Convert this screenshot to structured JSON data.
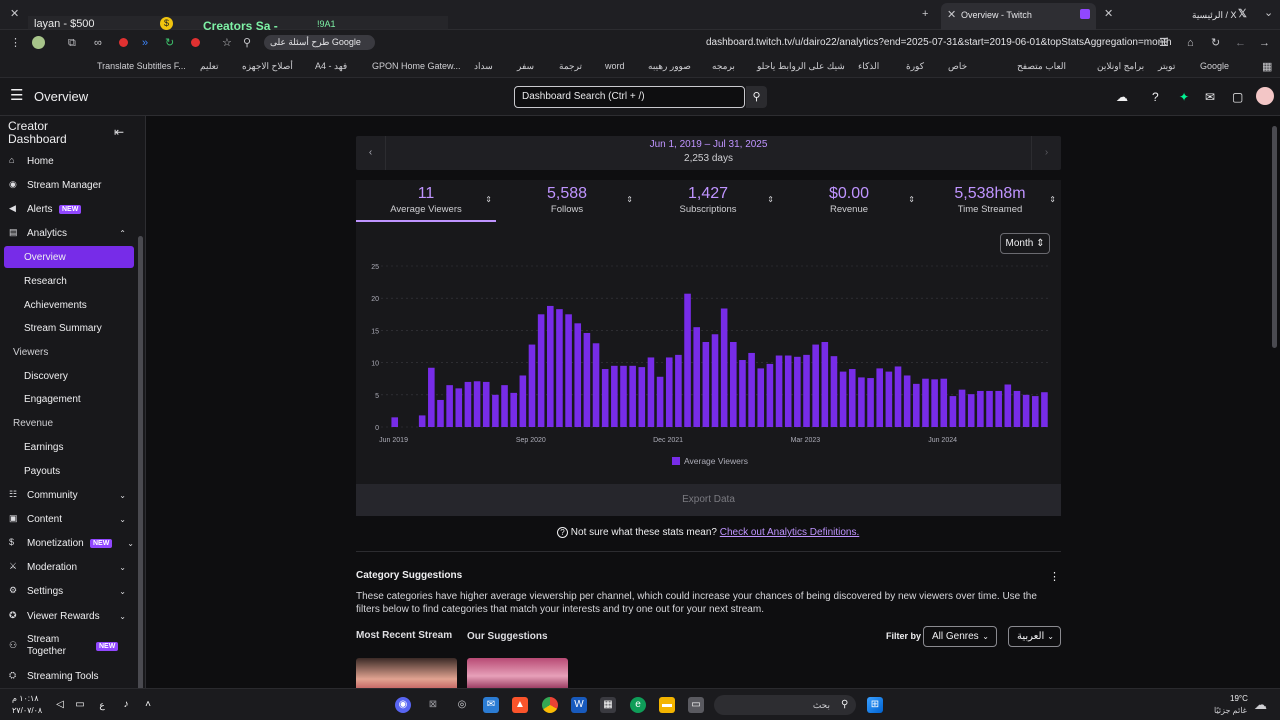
{
  "browser": {
    "tabs": [
      {
        "title": "Overview - Twitch"
      },
      {
        "title": "الرئيسية / X"
      }
    ],
    "extension_overlay": {
      "text1": "layan - $500",
      "text2": "Creators Sa -",
      "text3": "!9A1"
    },
    "address": "dashboard.twitch.tv/u/dairo22/analytics?end=2025-07-31&start=2019-06-01&topStatsAggregation=month",
    "google_prompt": "طرح أسئلة على Google",
    "bookmarks": [
      "Google",
      "تويتر",
      "برامج اونلاين",
      "العاب متصفح",
      "خاص",
      "كورة",
      "الذكاء",
      "شيك على الروابط ياحلو",
      "برمجه",
      "صوور رهيبه",
      "word",
      "ترجمة",
      "سفر",
      "سداد",
      "GPON Home Gatew...",
      "A4 - فهد",
      "أصلاح الاجهزه",
      "تعليم",
      "Translate Subtitles F..."
    ]
  },
  "topnav": {
    "title": "Overview",
    "search_placeholder": "Dashboard Search (Ctrl + /)"
  },
  "sidebar": {
    "title": "Creator Dashboard",
    "items": [
      {
        "label": "Home",
        "icon": "home-icon"
      },
      {
        "label": "Stream Manager",
        "icon": "stream-manager-icon"
      },
      {
        "label": "Alerts",
        "icon": "alerts-icon",
        "badge": "NEW"
      },
      {
        "label": "Analytics",
        "icon": "analytics-icon"
      },
      {
        "label": "Overview"
      },
      {
        "label": "Research"
      },
      {
        "label": "Achievements"
      },
      {
        "label": "Stream Summary"
      },
      {
        "label": "Viewers"
      },
      {
        "label": "Discovery"
      },
      {
        "label": "Engagement"
      },
      {
        "label": "Revenue"
      },
      {
        "label": "Earnings"
      },
      {
        "label": "Payouts"
      },
      {
        "label": "Community",
        "icon": "community-icon"
      },
      {
        "label": "Content",
        "icon": "content-icon"
      },
      {
        "label": "Monetization",
        "icon": "monetization-icon",
        "badge": "NEW"
      },
      {
        "label": "Moderation",
        "icon": "moderation-icon"
      },
      {
        "label": "Settings",
        "icon": "settings-icon"
      },
      {
        "label": "Viewer Rewards",
        "icon": "viewer-rewards-icon"
      },
      {
        "label": "Stream Together",
        "icon": "stream-together-icon",
        "badge": "NEW"
      },
      {
        "label": "Streaming Tools",
        "icon": "streaming-tools-icon"
      }
    ]
  },
  "date_range": {
    "range": "Jun 1, 2019 – Jul 31, 2025",
    "days": "2,253 days"
  },
  "stats": [
    {
      "value": "11",
      "label": "Average Viewers"
    },
    {
      "value": "5,588",
      "label": "Follows"
    },
    {
      "value": "1,427",
      "label": "Subscriptions"
    },
    {
      "value": "$0.00",
      "label": "Revenue"
    },
    {
      "value": "5,538h8m",
      "label": "Time Streamed"
    }
  ],
  "aggregation": "Month",
  "chart_data": {
    "type": "bar",
    "series": [
      {
        "name": "Average Viewers",
        "color": "#772ce8",
        "values": [
          0,
          1.5,
          0,
          0,
          1.8,
          9.2,
          4.2,
          6.5,
          6,
          7,
          7.1,
          7,
          5,
          6.5,
          5.3,
          8,
          12.8,
          17.5,
          18.8,
          18.3,
          17.5,
          16.1,
          14.6,
          13,
          9,
          9.5,
          9.5,
          9.5,
          9.3,
          10.8,
          7.8,
          10.8,
          11.2,
          20.7,
          15.5,
          13.2,
          14.4,
          18.4,
          13.2,
          10.4,
          11.5,
          9.1,
          9.8,
          11.1,
          11.1,
          10.9,
          11.2,
          12.8,
          13.2,
          11,
          8.6,
          9,
          7.7,
          7.6,
          9.1,
          8.6,
          9.4,
          8,
          6.7,
          7.5,
          7.4,
          7.5,
          4.8,
          5.8,
          5.1,
          5.6,
          5.6,
          5.6,
          6.6,
          5.6,
          5,
          4.8,
          5.4
        ]
      }
    ],
    "ylim": [
      0,
      25
    ],
    "yticks": [
      0,
      5,
      10,
      15,
      20,
      25
    ],
    "xtick_labels": [
      {
        "label": "Jun 2019",
        "index": 0
      },
      {
        "label": "Sep 2020",
        "index": 15
      },
      {
        "label": "Dec 2021",
        "index": 30
      },
      {
        "label": "Mar 2023",
        "index": 45
      },
      {
        "label": "Jun 2024",
        "index": 60
      }
    ],
    "grid": true,
    "legend": "bottom-center"
  },
  "export_label": "Export Data",
  "help": {
    "text": "Not sure what these stats mean?",
    "link": "Check out Analytics Definitions."
  },
  "category": {
    "title": "Category Suggestions",
    "description": "These categories have higher average viewership per channel, which could increase your chances of being discovered by new viewers over time. Use the filters below to find categories that match your interests and try one out for your next stream.",
    "tab_recent": "Most Recent Stream",
    "tab_suggestions": "Our Suggestions",
    "filter_label": "Filter by",
    "genre": "All Genres",
    "language": "العربية"
  },
  "taskbar": {
    "time": "١٠:١٨ م",
    "date": "٢٧/٠٧/٠٨",
    "search_placeholder": "بحث",
    "weather_temp": "19°C",
    "weather_text": "غائم جزئيًا"
  }
}
